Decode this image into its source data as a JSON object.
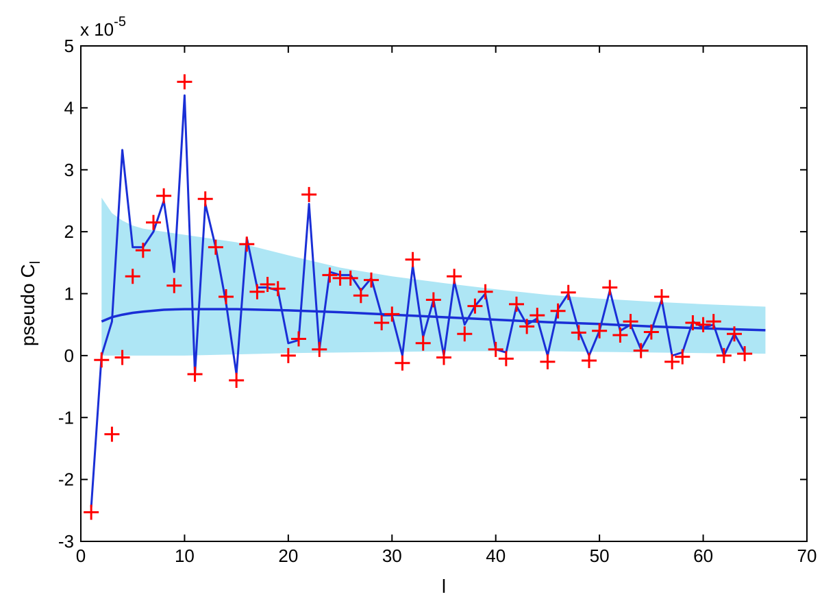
{
  "chart_data": {
    "type": "line",
    "title": "",
    "xlabel": "l",
    "ylabel": "pseudo C",
    "ylabel_subscript": "l",
    "y_scale_base": "x 10",
    "y_scale_exponent": "-5",
    "xlim": [
      0,
      70
    ],
    "ylim": [
      -3,
      5
    ],
    "x_ticks": [
      0,
      10,
      20,
      30,
      40,
      50,
      60,
      70
    ],
    "y_ticks": [
      -3,
      -2,
      -1,
      0,
      1,
      2,
      3,
      4,
      5
    ],
    "grid": false,
    "legend": "none",
    "colors": {
      "band": "#aee6f5",
      "line": "#1a2fd6",
      "markers": "#ff0000"
    },
    "series": [
      {
        "type": "area",
        "x": [
          2,
          3,
          4,
          5,
          6,
          8,
          10,
          15,
          20,
          25,
          30,
          35,
          40,
          45,
          50,
          55,
          60,
          66
        ],
        "lower": [
          0.0,
          0.0,
          0.0,
          0.0,
          0.0,
          0.0,
          0.0,
          0.02,
          0.04,
          0.05,
          0.06,
          0.07,
          0.07,
          0.07,
          0.06,
          0.05,
          0.04,
          0.03
        ],
        "upper": [
          2.55,
          2.3,
          2.18,
          2.1,
          2.05,
          2.0,
          1.95,
          1.83,
          1.62,
          1.42,
          1.28,
          1.17,
          1.07,
          0.98,
          0.92,
          0.87,
          0.83,
          0.79
        ]
      },
      {
        "type": "line",
        "x": [
          2,
          3,
          4,
          5,
          6,
          8,
          10,
          15,
          20,
          25,
          30,
          35,
          40,
          45,
          50,
          55,
          60,
          66
        ],
        "values": [
          0.55,
          0.62,
          0.66,
          0.69,
          0.71,
          0.74,
          0.75,
          0.75,
          0.73,
          0.7,
          0.66,
          0.62,
          0.58,
          0.54,
          0.51,
          0.47,
          0.44,
          0.41
        ]
      },
      {
        "type": "line",
        "x": [
          1,
          2,
          3,
          4,
          5,
          6,
          7,
          8,
          9,
          10,
          11,
          12,
          13,
          14,
          15,
          16,
          17,
          18,
          19,
          20,
          21,
          22,
          23,
          24,
          25,
          26,
          27,
          28,
          29,
          30,
          31,
          32,
          33,
          34,
          35,
          36,
          37,
          38,
          39,
          40,
          41,
          42,
          43,
          44,
          45,
          46,
          47,
          48,
          49,
          50,
          51,
          52,
          53,
          54,
          55,
          56,
          57,
          58,
          59,
          60,
          61,
          62,
          63,
          64
        ],
        "values": [
          -2.45,
          0.0,
          0.55,
          3.32,
          1.75,
          1.75,
          2.0,
          2.5,
          1.35,
          4.2,
          -0.3,
          2.45,
          1.75,
          0.85,
          -0.3,
          1.9,
          1.1,
          1.1,
          1.05,
          0.2,
          0.25,
          2.45,
          0.1,
          1.35,
          1.3,
          1.3,
          1.05,
          1.25,
          0.65,
          0.65,
          0.0,
          1.45,
          0.3,
          0.9,
          0.0,
          1.2,
          0.5,
          0.8,
          1.0,
          0.1,
          0.05,
          0.8,
          0.5,
          0.6,
          0.0,
          0.75,
          1.0,
          0.4,
          0.0,
          0.4,
          1.05,
          0.4,
          0.5,
          0.1,
          0.4,
          0.9,
          0.0,
          0.05,
          0.55,
          0.45,
          0.5,
          0.0,
          0.35,
          0.05
        ]
      },
      {
        "type": "scatter",
        "marker": "+",
        "x": [
          1,
          2,
          3,
          4,
          5,
          6,
          7,
          8,
          9,
          10,
          11,
          12,
          13,
          14,
          15,
          16,
          17,
          18,
          19,
          20,
          21,
          22,
          23,
          24,
          25,
          26,
          27,
          28,
          29,
          30,
          31,
          32,
          33,
          34,
          35,
          36,
          37,
          38,
          39,
          40,
          41,
          42,
          43,
          44,
          45,
          46,
          47,
          48,
          49,
          50,
          51,
          52,
          53,
          54,
          55,
          56,
          57,
          58,
          59,
          60,
          61,
          62,
          63,
          64
        ],
        "values": [
          -2.53,
          -0.07,
          -1.27,
          -0.03,
          1.28,
          1.7,
          2.15,
          2.58,
          1.13,
          4.42,
          -0.3,
          2.53,
          1.75,
          0.95,
          -0.4,
          1.8,
          1.03,
          1.15,
          1.08,
          0.0,
          0.27,
          2.6,
          0.1,
          1.3,
          1.25,
          1.25,
          0.97,
          1.22,
          0.53,
          0.67,
          -0.12,
          1.55,
          0.2,
          0.9,
          -0.03,
          1.28,
          0.35,
          0.8,
          1.03,
          0.1,
          -0.05,
          0.83,
          0.47,
          0.65,
          -0.1,
          0.72,
          1.02,
          0.37,
          -0.08,
          0.4,
          1.1,
          0.33,
          0.55,
          0.08,
          0.38,
          0.95,
          -0.1,
          -0.02,
          0.53,
          0.5,
          0.55,
          0.0,
          0.35,
          0.03
        ]
      }
    ]
  }
}
